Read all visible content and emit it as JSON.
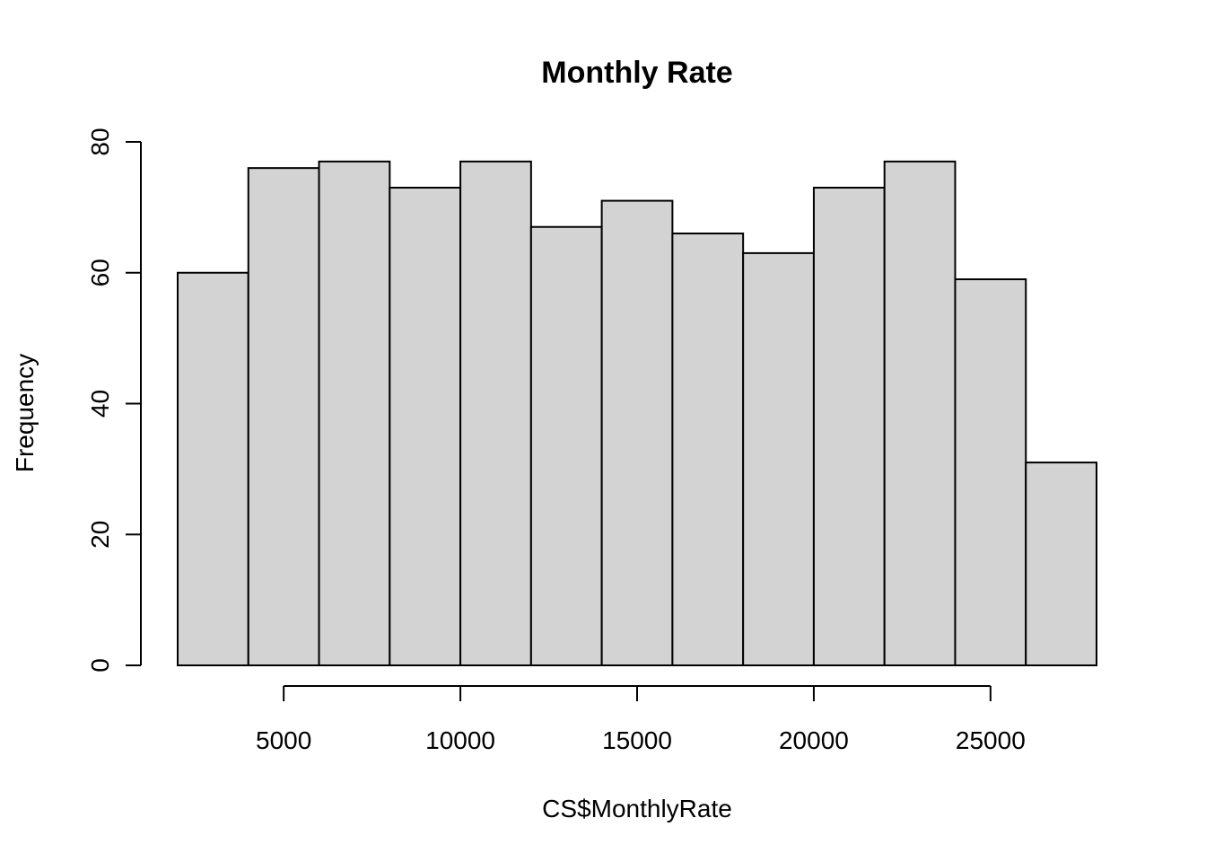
{
  "chart_data": {
    "type": "bar",
    "title": "Monthly Rate",
    "xlabel": "CS$MonthlyRate",
    "ylabel": "Frequency",
    "bins": [
      [
        2000,
        4000
      ],
      [
        4000,
        6000
      ],
      [
        6000,
        8000
      ],
      [
        8000,
        10000
      ],
      [
        10000,
        12000
      ],
      [
        12000,
        14000
      ],
      [
        14000,
        16000
      ],
      [
        16000,
        18000
      ],
      [
        18000,
        20000
      ],
      [
        20000,
        22000
      ],
      [
        22000,
        24000
      ],
      [
        24000,
        26000
      ],
      [
        26000,
        28000
      ]
    ],
    "values": [
      60,
      76,
      77,
      73,
      77,
      67,
      71,
      66,
      63,
      73,
      77,
      59,
      31
    ],
    "xlim": [
      2000,
      28000
    ],
    "ylim": [
      0,
      80
    ],
    "xticks": [
      5000,
      10000,
      15000,
      20000,
      25000
    ],
    "xtick_labels": [
      "5000",
      "10000",
      "15000",
      "20000",
      "25000"
    ],
    "yticks": [
      0,
      20,
      40,
      60,
      80
    ],
    "ytick_labels": [
      "0",
      "20",
      "40",
      "60",
      "80"
    ],
    "bar_color": "#d3d3d3",
    "edge_color": "#000000",
    "grid": false,
    "legend": "none"
  }
}
